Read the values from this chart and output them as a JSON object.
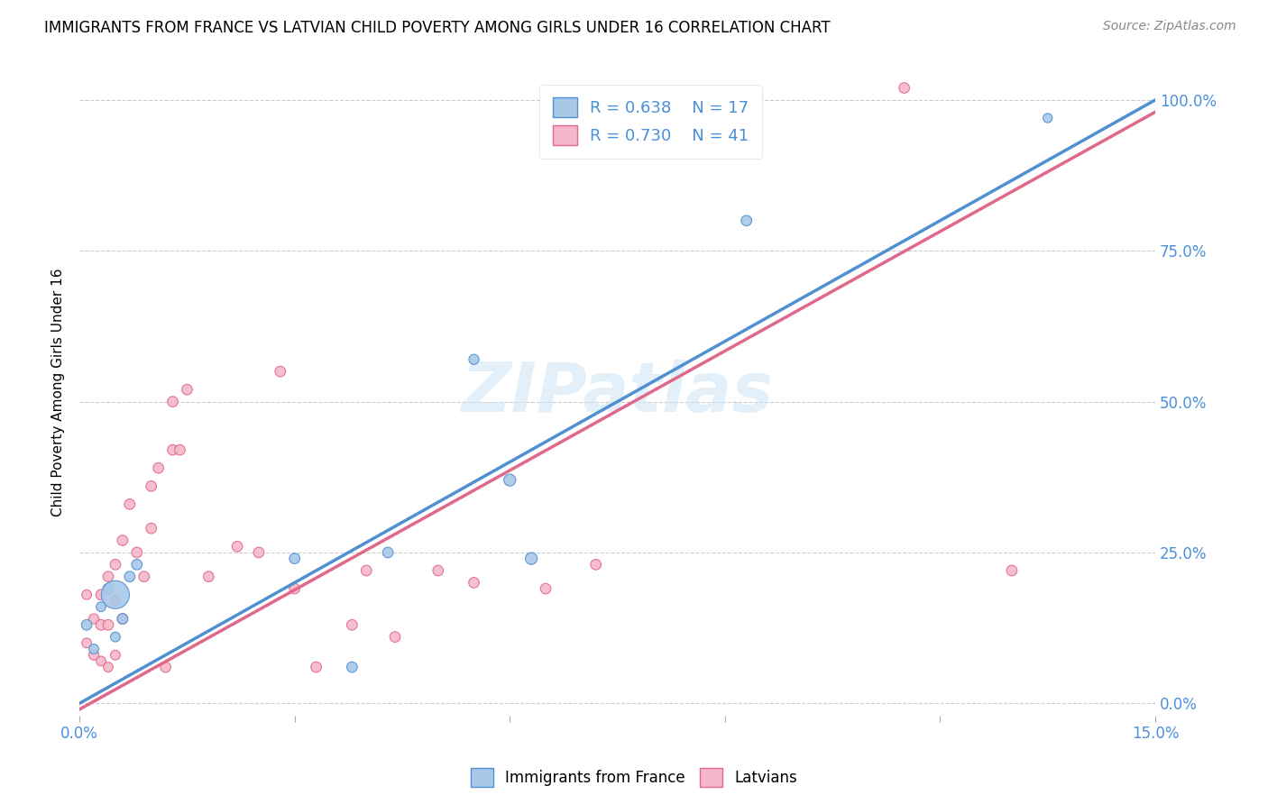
{
  "title": "IMMIGRANTS FROM FRANCE VS LATVIAN CHILD POVERTY AMONG GIRLS UNDER 16 CORRELATION CHART",
  "source": "Source: ZipAtlas.com",
  "xlabel": "",
  "ylabel": "Child Poverty Among Girls Under 16",
  "xlim": [
    0.0,
    0.15
  ],
  "ylim": [
    -0.02,
    1.05
  ],
  "xticks": [
    0.0,
    0.03,
    0.06,
    0.09,
    0.12,
    0.15
  ],
  "xtick_labels": [
    "0.0%",
    "",
    "",
    "",
    "",
    "15.0%"
  ],
  "ytick_labels_right": [
    "0.0%",
    "25.0%",
    "50.0%",
    "75.0%",
    "100.0%"
  ],
  "yticks_right": [
    0.0,
    0.25,
    0.5,
    0.75,
    1.0
  ],
  "blue_R": "0.638",
  "blue_N": "17",
  "pink_R": "0.730",
  "pink_N": "41",
  "blue_color": "#a8c8e8",
  "pink_color": "#f5b8ca",
  "blue_line_color": "#5090d0",
  "pink_line_color": "#e06888",
  "watermark": "ZIPatlas",
  "blue_line_x0": 0.0,
  "blue_line_y0": 0.0,
  "blue_line_x1": 0.15,
  "blue_line_y1": 1.0,
  "pink_line_x0": 0.0,
  "pink_line_y0": -0.01,
  "pink_line_x1": 0.15,
  "pink_line_y1": 0.98,
  "blue_scatter_x": [
    0.001,
    0.002,
    0.003,
    0.004,
    0.005,
    0.005,
    0.006,
    0.007,
    0.008,
    0.03,
    0.038,
    0.043,
    0.055,
    0.06,
    0.063,
    0.093,
    0.135
  ],
  "blue_scatter_y": [
    0.13,
    0.09,
    0.16,
    0.19,
    0.18,
    0.11,
    0.14,
    0.21,
    0.23,
    0.24,
    0.06,
    0.25,
    0.57,
    0.37,
    0.24,
    0.8,
    0.97
  ],
  "blue_scatter_size": [
    70,
    60,
    60,
    70,
    500,
    60,
    70,
    70,
    70,
    70,
    70,
    70,
    65,
    90,
    90,
    70,
    55
  ],
  "pink_scatter_x": [
    0.001,
    0.001,
    0.002,
    0.002,
    0.003,
    0.003,
    0.003,
    0.004,
    0.004,
    0.004,
    0.005,
    0.005,
    0.005,
    0.006,
    0.006,
    0.007,
    0.008,
    0.009,
    0.01,
    0.01,
    0.011,
    0.012,
    0.013,
    0.013,
    0.014,
    0.015,
    0.018,
    0.022,
    0.025,
    0.028,
    0.03,
    0.033,
    0.038,
    0.04,
    0.044,
    0.05,
    0.055,
    0.065,
    0.072,
    0.115,
    0.13
  ],
  "pink_scatter_y": [
    0.1,
    0.18,
    0.08,
    0.14,
    0.07,
    0.13,
    0.18,
    0.06,
    0.13,
    0.21,
    0.08,
    0.17,
    0.23,
    0.14,
    0.27,
    0.33,
    0.25,
    0.21,
    0.29,
    0.36,
    0.39,
    0.06,
    0.5,
    0.42,
    0.42,
    0.52,
    0.21,
    0.26,
    0.25,
    0.55,
    0.19,
    0.06,
    0.13,
    0.22,
    0.11,
    0.22,
    0.2,
    0.19,
    0.23,
    1.02,
    0.22
  ],
  "pink_scatter_size": [
    60,
    60,
    65,
    65,
    60,
    70,
    70,
    60,
    70,
    70,
    60,
    70,
    70,
    70,
    70,
    70,
    70,
    70,
    70,
    70,
    70,
    70,
    70,
    70,
    70,
    70,
    70,
    70,
    70,
    70,
    70,
    70,
    70,
    70,
    70,
    70,
    70,
    70,
    70,
    70,
    70
  ]
}
